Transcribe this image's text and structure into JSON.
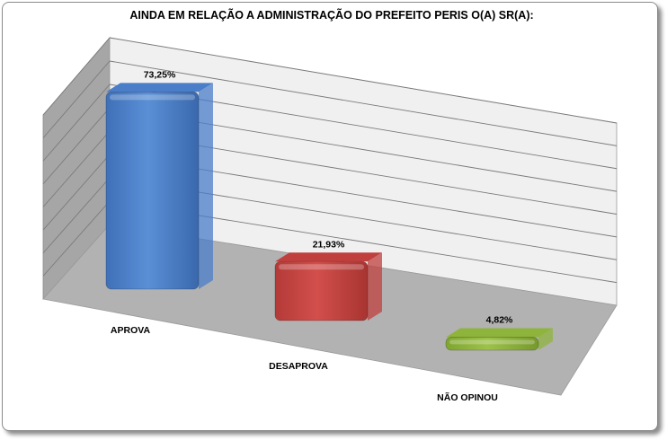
{
  "chart_data": {
    "type": "bar",
    "title": "AINDA EM RELAÇÃO A ADMINISTRAÇÃO DO PREFEITO PERIS O(A) SR(A):",
    "categories": [
      "APROVA",
      "DESAPROVA",
      "NÃO OPINOU"
    ],
    "values": [
      73.25,
      21.93,
      4.82
    ],
    "data_labels": [
      "73,25%",
      "21,93%",
      "4,82%"
    ],
    "ylim": [
      0,
      80
    ],
    "grid": true,
    "legend": "none",
    "style": "3d-perspective",
    "colors": [
      "#4a7ec8",
      "#c0403e",
      "#8fb43c"
    ]
  }
}
